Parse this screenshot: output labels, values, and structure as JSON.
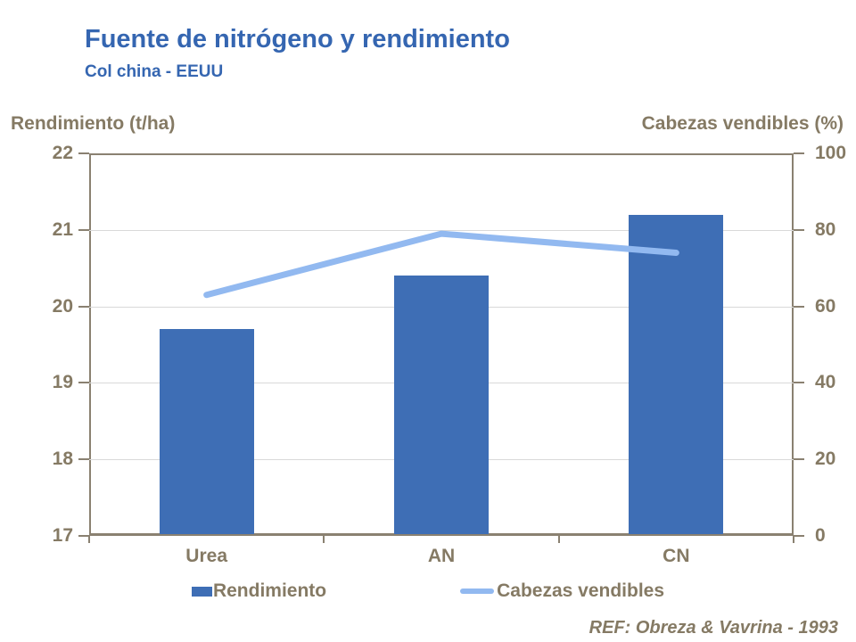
{
  "header": {
    "title": "Fuente de nitrógeno y rendimiento",
    "subtitle": "Col china - EEUU"
  },
  "footer": {
    "ref": "REF: Obreza & Vavrina - 1993"
  },
  "colors": {
    "accent_blue": "#3566b1",
    "bar_blue": "#3e6eb5",
    "line_blue": "#92b9f0",
    "text_taupe": "#857a64",
    "axis_taupe": "#8a8171",
    "gridline_gray": "#d9d9d9"
  },
  "chart_data": {
    "type": "bar",
    "title": "Fuente de nitrógeno y rendimiento",
    "subtitle": "Col china - EEUU",
    "categories": [
      "Urea",
      "AN",
      "CN"
    ],
    "series": [
      {
        "name": "Rendimiento",
        "type": "bar",
        "axis": "left",
        "values": [
          19.7,
          20.4,
          21.2
        ]
      },
      {
        "name": "Cabezas vendibles",
        "type": "line",
        "axis": "right",
        "values": [
          63,
          79,
          74
        ]
      }
    ],
    "left_axis": {
      "label": "Rendimiento (t/ha)",
      "min": 17,
      "max": 22,
      "ticks": [
        22,
        21,
        20,
        19,
        18,
        17
      ]
    },
    "right_axis": {
      "label": "Cabezas vendibles (%)",
      "min": 0,
      "max": 100,
      "ticks": [
        100,
        80,
        60,
        40,
        20,
        0
      ]
    },
    "grid": true,
    "legend_position": "bottom"
  }
}
